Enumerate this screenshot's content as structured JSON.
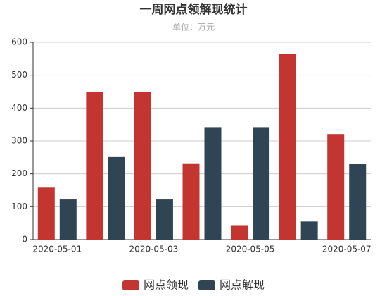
{
  "chart_data": {
    "type": "bar",
    "title": "一周网点领解现统计",
    "subtitle": "单位：万元",
    "categories": [
      "2020-05-01",
      null,
      "2020-05-03",
      null,
      "2020-05-05",
      null,
      "2020-05-07"
    ],
    "series": [
      {
        "name": "网点领现",
        "color": "#c23531",
        "values": [
          158,
          448,
          448,
          232,
          44,
          564,
          321
        ]
      },
      {
        "name": "网点解现",
        "color": "#2f4554",
        "values": [
          122,
          251,
          122,
          342,
          342,
          55,
          231
        ]
      }
    ],
    "ylim": [
      0,
      600
    ],
    "yticks": [
      0,
      100,
      200,
      300,
      400,
      500,
      600
    ],
    "grid": true,
    "legend": "bottom"
  }
}
